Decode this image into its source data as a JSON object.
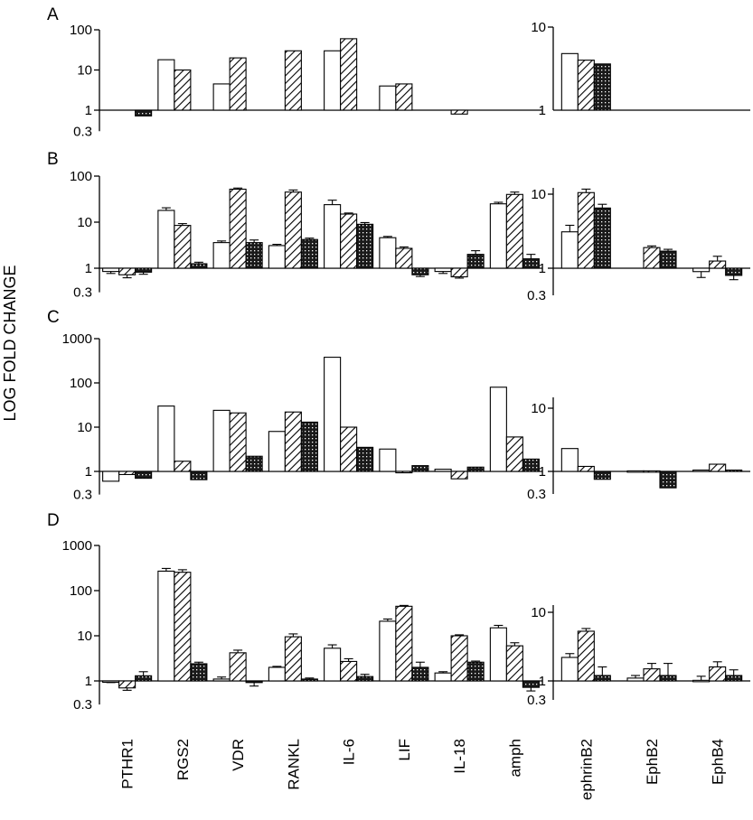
{
  "figure": {
    "ylabel": "LOG FOLD CHANGE"
  },
  "chart_data": {
    "type": "bar",
    "scale": "log",
    "ylabel": "LOG FOLD CHANGE",
    "series_patterns": [
      "open",
      "hatched",
      "dotted"
    ],
    "categories_left": [
      "PTHR1",
      "RGS2",
      "VDR",
      "RANKL",
      "IL-6",
      "LIF",
      "IL-18",
      "amph"
    ],
    "categories_right": [
      "ephrinB2",
      "EphB2",
      "EphB4"
    ],
    "panels": [
      {
        "label": "A",
        "left": {
          "ylim": [
            0.3,
            100
          ],
          "ticks": [
            0.3,
            1,
            10,
            100
          ],
          "tick_labels": [
            "0.3",
            "1",
            "10",
            "100"
          ],
          "values": [
            [
              null,
              null,
              0.72
            ],
            [
              18,
              10,
              null
            ],
            [
              4.5,
              20,
              null
            ],
            [
              null,
              30,
              null
            ],
            [
              30,
              60,
              null
            ],
            [
              4,
              4.5,
              null
            ],
            [
              null,
              0.8,
              null
            ],
            [
              null,
              null,
              null
            ]
          ],
          "errors": null
        },
        "right": {
          "ylim": [
            1,
            10
          ],
          "ticks": [
            1,
            10
          ],
          "tick_labels": [
            "1",
            "10"
          ],
          "values": [
            [
              4.8,
              4,
              3.6
            ],
            [
              null,
              null,
              null
            ],
            [
              null,
              null,
              null
            ]
          ],
          "errors": null
        }
      },
      {
        "label": "B",
        "left": {
          "ylim": [
            0.3,
            100
          ],
          "ticks": [
            0.3,
            1,
            10,
            100
          ],
          "tick_labels": [
            "0.3",
            "1",
            "10",
            "100"
          ],
          "values": [
            [
              0.85,
              0.72,
              0.82
            ],
            [
              18,
              8.5,
              1.25
            ],
            [
              3.6,
              52,
              3.6
            ],
            [
              3.1,
              45,
              4.2
            ],
            [
              24,
              15,
              9
            ],
            [
              4.6,
              2.7,
              0.72
            ],
            [
              0.85,
              0.65,
              2
            ],
            [
              25,
              40,
              1.6
            ]
          ],
          "errors": [
            [
              0.08,
              0.1,
              0.08
            ],
            [
              2.5,
              0.8,
              0.1
            ],
            [
              0.3,
              3,
              0.5
            ],
            [
              0.2,
              5,
              0.3
            ],
            [
              6,
              0.8,
              0.8
            ],
            [
              0.3,
              0.2,
              0.06
            ],
            [
              0.08,
              0.04,
              0.4
            ],
            [
              2,
              5,
              0.4
            ]
          ]
        },
        "right": {
          "ylim": [
            0.3,
            10
          ],
          "ticks": [
            0.3,
            1,
            10
          ],
          "tick_labels": [
            "0.3",
            "1",
            "10"
          ],
          "values": [
            [
              3.1,
              10.5,
              6.5
            ],
            [
              null,
              1.9,
              1.7
            ],
            [
              0.9,
              1.25,
              0.8
            ]
          ],
          "errors": [
            [
              0.7,
              1.2,
              0.8
            ],
            [
              null,
              0.1,
              0.1
            ],
            [
              0.15,
              0.2,
              0.1
            ]
          ]
        }
      },
      {
        "label": "C",
        "left": {
          "ylim": [
            0.3,
            1000
          ],
          "ticks": [
            0.3,
            1,
            10,
            100,
            1000
          ],
          "tick_labels": [
            "0.3",
            "1",
            "10",
            "100",
            "1000"
          ],
          "values": [
            [
              0.6,
              0.85,
              0.7
            ],
            [
              30,
              1.7,
              0.65
            ],
            [
              24,
              21,
              2.2
            ],
            [
              8,
              22,
              13
            ],
            [
              380,
              10,
              3.5
            ],
            [
              3.2,
              0.93,
              1.35
            ],
            [
              1.12,
              0.68,
              1.25
            ],
            [
              80,
              6,
              1.9
            ]
          ],
          "errors": null
        },
        "right": {
          "ylim": [
            0.3,
            10
          ],
          "ticks": [
            0.3,
            1,
            10
          ],
          "tick_labels": [
            "0.3",
            "1",
            "10"
          ],
          "values": [
            [
              2.3,
              1.2,
              0.75
            ],
            [
              1.02,
              1.02,
              0.55
            ],
            [
              1.05,
              1.3,
              1.05
            ]
          ],
          "errors": null
        }
      },
      {
        "label": "D",
        "left": {
          "ylim": [
            0.3,
            1000
          ],
          "ticks": [
            0.3,
            1,
            10,
            100,
            1000
          ],
          "tick_labels": [
            "0.3",
            "1",
            "10",
            "100",
            "1000"
          ],
          "values": [
            [
              0.95,
              0.7,
              1.3
            ],
            [
              270,
              255,
              2.4
            ],
            [
              1.1,
              4.2,
              0.92
            ],
            [
              2,
              9.5,
              1.1
            ],
            [
              5.3,
              2.7,
              1.25
            ],
            [
              21,
              45,
              2
            ],
            [
              1.5,
              10,
              2.6
            ],
            [
              15,
              6,
              0.72
            ]
          ],
          "errors": [
            [
              0.03,
              0.08,
              0.3
            ],
            [
              40,
              35,
              0.2
            ],
            [
              0.12,
              0.6,
              0.15
            ],
            [
              0.1,
              1.5,
              0.06
            ],
            [
              1,
              0.4,
              0.15
            ],
            [
              2.5,
              2,
              0.6
            ],
            [
              0.1,
              0.5,
              0.15
            ],
            [
              2,
              1,
              0.12
            ]
          ]
        },
        "right": {
          "ylim": [
            0.3,
            10
          ],
          "ticks": [
            0.3,
            1,
            10
          ],
          "tick_labels": [
            "0.3",
            "1",
            "10"
          ],
          "values": [
            [
              2.2,
              5.3,
              1.2
            ],
            [
              1.1,
              1.5,
              1.2
            ],
            [
              1.02,
              1.6,
              1.2
            ]
          ],
          "errors": [
            [
              0.3,
              0.5,
              0.4
            ],
            [
              0.1,
              0.3,
              0.6
            ],
            [
              0.15,
              0.3,
              0.25
            ]
          ]
        }
      }
    ]
  }
}
